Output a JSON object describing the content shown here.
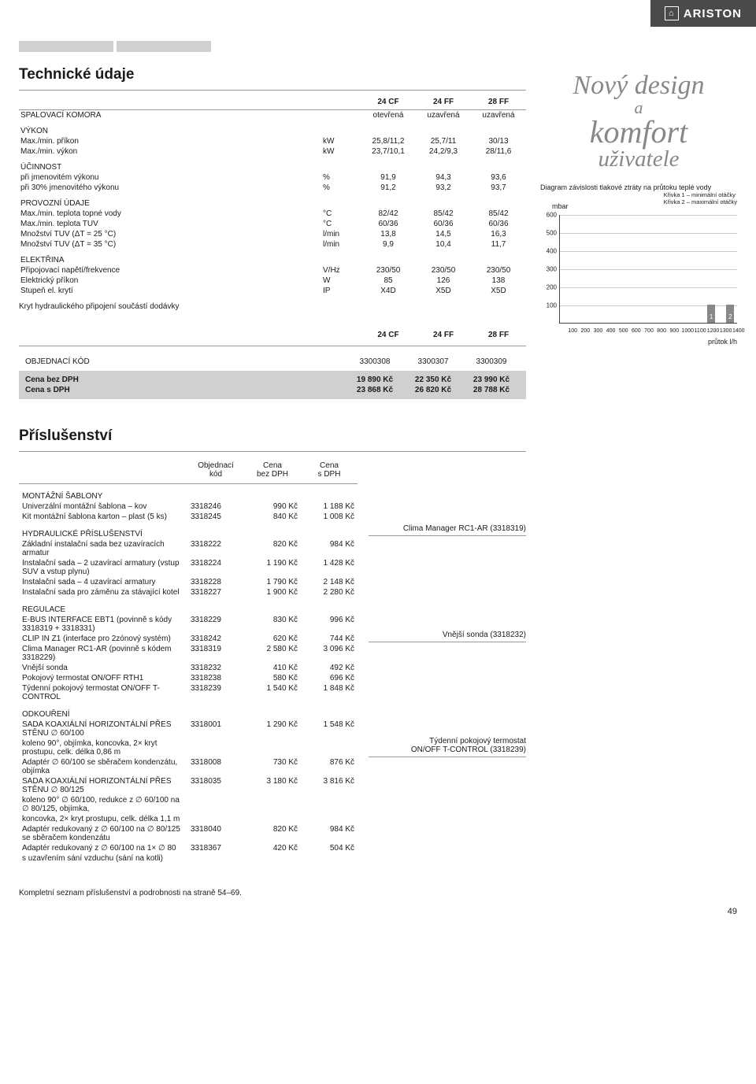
{
  "brand": "ARISTON",
  "section1_title": "Technické údaje",
  "models": [
    "24 CF",
    "24 FF",
    "28 FF"
  ],
  "tech_rows": [
    {
      "type": "row",
      "label": "SPALOVACÍ KOMORA",
      "unit": "",
      "v": [
        "otevřená",
        "uzavřená",
        "uzavřená"
      ]
    },
    {
      "type": "group",
      "label": "VÝKON"
    },
    {
      "type": "row",
      "label": "Max./min. příkon",
      "unit": "kW",
      "v": [
        "25,8/11,2",
        "25,7/11",
        "30/13"
      ]
    },
    {
      "type": "row",
      "label": "Max./min. výkon",
      "unit": "kW",
      "v": [
        "23,7/10,1",
        "24,2/9,3",
        "28/11,6"
      ]
    },
    {
      "type": "group",
      "label": "ÚČINNOST"
    },
    {
      "type": "row",
      "label": "při jmenovitém výkonu",
      "unit": "%",
      "v": [
        "91,9",
        "94,3",
        "93,6"
      ]
    },
    {
      "type": "row",
      "label": "při 30% jmenovitého výkonu",
      "unit": "%",
      "v": [
        "91,2",
        "93,2",
        "93,7"
      ]
    },
    {
      "type": "group",
      "label": "PROVOZNÍ ÚDAJE"
    },
    {
      "type": "row",
      "label": "Max./min. teplota topné vody",
      "unit": "°C",
      "v": [
        "82/42",
        "85/42",
        "85/42"
      ]
    },
    {
      "type": "row",
      "label": "Max./min. teplota TUV",
      "unit": "°C",
      "v": [
        "60/36",
        "60/36",
        "60/36"
      ]
    },
    {
      "type": "row",
      "label": "Množství TUV (ΔT = 25 °C)",
      "unit": "l/min",
      "v": [
        "13,8",
        "14,5",
        "16,3"
      ]
    },
    {
      "type": "row",
      "label": "Množství TUV (ΔT = 35 °C)",
      "unit": "l/min",
      "v": [
        "9,9",
        "10,4",
        "11,7"
      ]
    },
    {
      "type": "group",
      "label": "ELEKTŘINA"
    },
    {
      "type": "row",
      "label": "Připojovací napětí/frekvence",
      "unit": "V/Hz",
      "v": [
        "230/50",
        "230/50",
        "230/50"
      ]
    },
    {
      "type": "row",
      "label": "Elektrický příkon",
      "unit": "W",
      "v": [
        "85",
        "126",
        "138"
      ]
    },
    {
      "type": "row",
      "label": "Stupeň el. krytí",
      "unit": "IP",
      "v": [
        "X4D",
        "X5D",
        "X5D"
      ]
    }
  ],
  "tech_footer": "Kryt hydraulického připojení součástí dodávky",
  "order_label": "OBJEDNACÍ KÓD",
  "order_codes": [
    "3300308",
    "3300307",
    "3300309"
  ],
  "price_ex_label": "Cena bez DPH",
  "price_ex": [
    "19 890 Kč",
    "22 350 Kč",
    "23 990 Kč"
  ],
  "price_inc_label": "Cena s DPH",
  "price_inc": [
    "23 868 Kč",
    "26 820 Kč",
    "28 788 Kč"
  ],
  "design": {
    "l1": "Nový design",
    "l2": "a",
    "l3": "komfort",
    "l4": "uživatele"
  },
  "chart": {
    "title": "Diagram závislosti tlakové ztráty na průtoku teplé vody",
    "ylabel": "mbar",
    "legend1": "Křivka 1 – minimální otáčky",
    "legend2": "Křivka 2 – maximální otáčky",
    "yticks": [
      100,
      200,
      300,
      400,
      500,
      600
    ],
    "xticks": [
      100,
      200,
      300,
      400,
      500,
      600,
      700,
      800,
      900,
      1000,
      1100,
      1200,
      1300,
      1400
    ],
    "xaxis_title": "průtok l/h",
    "bars": [
      {
        "x": 1190,
        "h": 100,
        "label": "1"
      },
      {
        "x": 1340,
        "h": 100,
        "label": "2"
      }
    ],
    "bar_color": "#888888",
    "grid_color": "#cccccc"
  },
  "section2_title": "Příslušenství",
  "acc_headers": {
    "code": "Objednací\nkód",
    "p1": "Cena\nbez DPH",
    "p2": "Cena\ns DPH"
  },
  "acc_groups": [
    {
      "title": "MONTÁŽNÍ ŠABLONY",
      "items": [
        {
          "n": "Univerzální montážní šablona – kov",
          "c": "3318246",
          "p1": "990 Kč",
          "p2": "1 188 Kč"
        },
        {
          "n": "Kit montážní šablona karton – plast (5 ks)",
          "c": "3318245",
          "p1": "840 Kč",
          "p2": "1 008 Kč"
        }
      ]
    },
    {
      "title": "HYDRAULICKÉ PŘÍSLUŠENSTVÍ",
      "items": [
        {
          "n": "Základní instalační sada bez uzavíracích armatur",
          "c": "3318222",
          "p1": "820 Kč",
          "p2": "984 Kč"
        },
        {
          "n": "Instalační sada – 2 uzavírací armatury (vstup SUV a vstup plynu)",
          "c": "3318224",
          "p1": "1 190 Kč",
          "p2": "1 428 Kč"
        },
        {
          "n": "Instalační sada – 4 uzavírací armatury",
          "c": "3318228",
          "p1": "1 790 Kč",
          "p2": "2 148 Kč"
        },
        {
          "n": "Instalační sada pro záměnu za stávající kotel",
          "c": "3318227",
          "p1": "1 900 Kč",
          "p2": "2 280 Kč"
        }
      ]
    },
    {
      "title": "REGULACE",
      "items": [
        {
          "n": "E-BUS INTERFACE EBT1 (povinně s kódy 3318319 + 3318331)",
          "c": "3318229",
          "p1": "830 Kč",
          "p2": "996 Kč"
        },
        {
          "n": "CLIP IN Z1 (interface pro 2zónový systém)",
          "c": "3318242",
          "p1": "620 Kč",
          "p2": "744 Kč"
        },
        {
          "n": "Clima Manager RC1-AR (povinně s kódem 3318229)",
          "c": "3318319",
          "p1": "2 580 Kč",
          "p2": "3 096 Kč"
        },
        {
          "n": "Vnější sonda",
          "c": "3318232",
          "p1": "410 Kč",
          "p2": "492 Kč"
        },
        {
          "n": "Pokojový termostat ON/OFF RTH1",
          "c": "3318238",
          "p1": "580 Kč",
          "p2": "696 Kč"
        },
        {
          "n": "Týdenní pokojový termostat ON/OFF T-CONTROL",
          "c": "3318239",
          "p1": "1 540 Kč",
          "p2": "1 848 Kč"
        }
      ]
    },
    {
      "title": "ODKOUŘENÍ",
      "items": [
        {
          "n": "SADA KOAXIÁLNÍ HORIZONTÁLNÍ PŘES STĚNU ∅ 60/100",
          "c": "3318001",
          "p1": "1 290 Kč",
          "p2": "1 548 Kč"
        },
        {
          "n": "koleno 90°, objímka, koncovka, 2× kryt prostupu, celk. délka 0,86 m",
          "c": "",
          "p1": "",
          "p2": ""
        },
        {
          "n": "Adaptér ∅ 60/100 se sběračem kondenzátu, objímka",
          "c": "3318008",
          "p1": "730 Kč",
          "p2": "876 Kč"
        },
        {
          "n": "SADA KOAXIÁLNÍ HORIZONTÁLNÍ PŘES STĚNU ∅ 80/125",
          "c": "3318035",
          "p1": "3 180 Kč",
          "p2": "3 816 Kč"
        },
        {
          "n": "koleno 90° ∅ 60/100, redukce z ∅ 60/100 na ∅ 80/125, objímka,",
          "c": "",
          "p1": "",
          "p2": ""
        },
        {
          "n": "koncovka, 2× kryt prostupu, celk. délka 1,1 m",
          "c": "",
          "p1": "",
          "p2": ""
        },
        {
          "n": "Adaptér redukovaný z ∅ 60/100 na ∅ 80/125 se sběračem kondenzátu",
          "c": "3318040",
          "p1": "820 Kč",
          "p2": "984 Kč"
        },
        {
          "n": "Adaptér redukovaný z ∅ 60/100 na 1× ∅ 80",
          "c": "3318367",
          "p1": "420 Kč",
          "p2": "504 Kč"
        },
        {
          "n": "s uzavřením sání vzduchu (sání na kotli)",
          "c": "",
          "p1": "",
          "p2": ""
        }
      ]
    }
  ],
  "acc_side": [
    "Clima Manager RC1-AR (3318319)",
    "Vnější sonda (3318232)",
    "Týdenní pokojový termostat\nON/OFF T-CONTROL (3318239)"
  ],
  "footer": "Kompletní seznam příslušenství a podrobnosti na straně 54–69.",
  "page": "49"
}
